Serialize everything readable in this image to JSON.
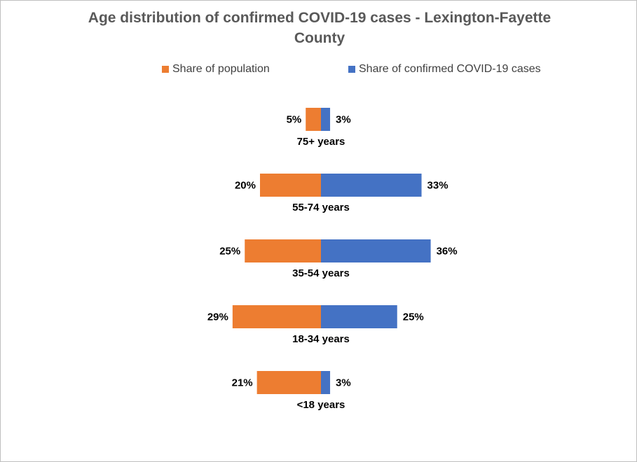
{
  "colors": {
    "population": "#ED7D31",
    "cases": "#4472C4"
  },
  "chart_data": {
    "type": "bar",
    "orientation": "horizontal-diverging",
    "title": "Age distribution of confirmed COVID-19 cases -  Lexington-Fayette County",
    "title_line1": "Age distribution of confirmed COVID-19 cases -  Lexington-Fayette",
    "title_line2": "County",
    "legend_position": "top",
    "grid": false,
    "xlim_percent": [
      -30,
      40
    ],
    "categories": [
      "75+ years",
      "55-74 years",
      "35-54 years",
      "18-34 years",
      "<18 years"
    ],
    "series": [
      {
        "name": "Share of population",
        "values": [
          5,
          20,
          25,
          29,
          21
        ],
        "labels": [
          "5%",
          "20%",
          "25%",
          "29%",
          "21%"
        ]
      },
      {
        "name": "Share of confirmed COVID-19 cases",
        "values": [
          3,
          33,
          36,
          25,
          3
        ],
        "labels": [
          "3%",
          "33%",
          "36%",
          "25%",
          "3%"
        ]
      }
    ]
  }
}
